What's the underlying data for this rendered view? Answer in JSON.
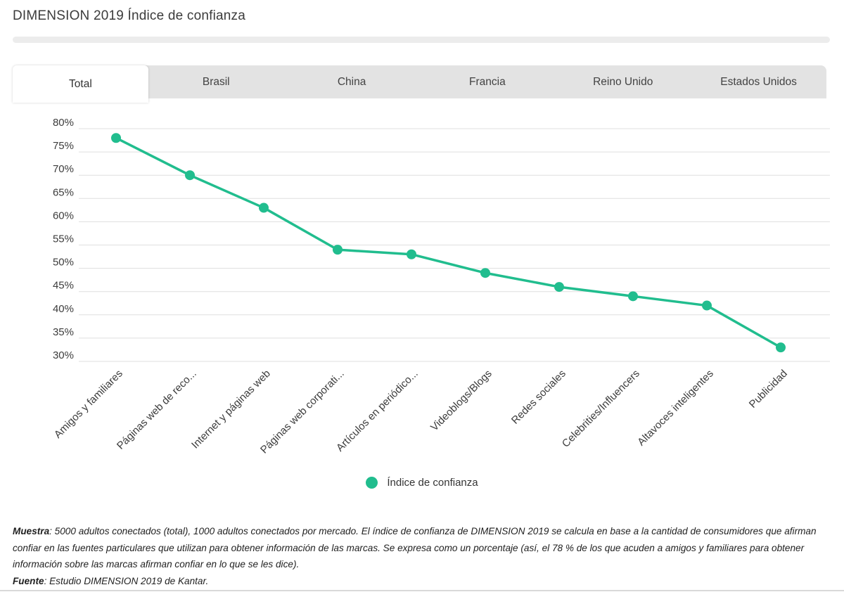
{
  "page": {
    "title": "DIMENSION 2019 Índice de confianza"
  },
  "tabs": [
    {
      "label": "Total",
      "active": true
    },
    {
      "label": "Brasil",
      "active": false
    },
    {
      "label": "China",
      "active": false
    },
    {
      "label": "Francia",
      "active": false
    },
    {
      "label": "Reino Unido",
      "active": false
    },
    {
      "label": "Estados Unidos",
      "active": false
    }
  ],
  "chart_data": {
    "type": "line",
    "title": "DIMENSION 2019 Índice de confianza",
    "categories": [
      "Amigos y familiares",
      "Páginas web de reco...",
      "Internet y páginas web",
      "Páginas web corporati...",
      "Artículos en periódico...",
      "Videoblogs/Blogs",
      "Redes sociales",
      "Celebrities/Influencers",
      "Altavoces inteligentes",
      "Publicidad"
    ],
    "series": [
      {
        "name": "Índice de confianza",
        "values": [
          78,
          70,
          63,
          54,
          53,
          49,
          46,
          44,
          42,
          33
        ]
      }
    ],
    "xlabel": "",
    "ylabel": "",
    "ylim": [
      30,
      80
    ],
    "ytick_step": 5,
    "ytick_suffix": "%",
    "grid": true,
    "legend_position": "bottom",
    "line_color": "#21bd8e",
    "gridline_color": "#dfdfdf",
    "axis_label_color": "#3c3c3c"
  },
  "legend": {
    "label": "Índice de confianza",
    "color": "#21bd8e"
  },
  "footnotes": {
    "muestra_label": "Muestra",
    "muestra_text": ": 5000 adultos conectados (total), 1000 adultos conectados por mercado. El índice de confianza de DIMENSION 2019 se calcula en base a la cantidad de consumidores que afirman confiar en las fuentes particulares que utilizan para obtener información de las marcas. Se expresa como un porcentaje (así, el 78 % de los que acuden a amigos y familiares para obtener información sobre las marcas afirman confiar en lo que se les dice).",
    "fuente_label": "Fuente",
    "fuente_text": ": Estudio DIMENSION 2019 de Kantar."
  }
}
